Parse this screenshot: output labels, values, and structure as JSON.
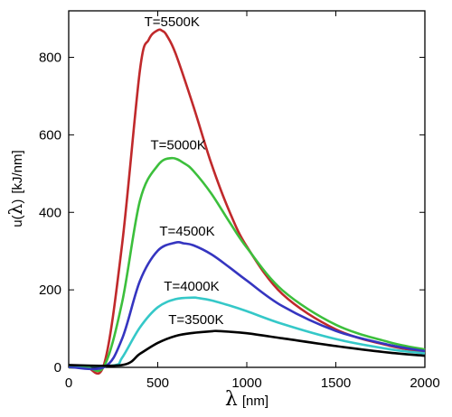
{
  "chart_data": {
    "type": "line",
    "xlabel": {
      "symbol": "λ",
      "unit": "[nm]"
    },
    "ylabel": {
      "prefix": "u(",
      "symbol": "λ",
      "suffix": ")",
      "unit": "[kJ/nm]"
    },
    "xlim": [
      0,
      2000
    ],
    "ylim": [
      0,
      920
    ],
    "xticks": [
      0,
      500,
      1000,
      1500,
      2000
    ],
    "yticks": [
      0,
      200,
      400,
      600,
      800
    ],
    "xtick_labels": [
      "0",
      "500",
      "1000",
      "1500",
      "2000"
    ],
    "ytick_labels": [
      "0",
      "200",
      "400",
      "600",
      "800"
    ],
    "grid": false,
    "legend": "none",
    "series": [
      {
        "label": "T=5500K",
        "color": "#c0292b",
        "x": [
          100,
          200,
          300,
          400,
          450,
          500,
          527,
          550,
          600,
          700,
          800,
          900,
          1000,
          1200,
          1500,
          1800,
          2000
        ],
        "y": [
          0,
          10,
          318,
          767,
          846,
          870,
          868,
          857,
          810,
          674,
          527,
          405,
          312,
          189,
          98,
          56,
          40
        ]
      },
      {
        "label": "T=5000K",
        "color": "#3cbf3c",
        "x": [
          100,
          200,
          300,
          400,
          500,
          580,
          650,
          700,
          800,
          900,
          1000,
          1200,
          1500,
          1800,
          2000
        ],
        "y": [
          0,
          4,
          168,
          430,
          521,
          540,
          526,
          507,
          449,
          377,
          309,
          199,
          110,
          65,
          46
        ]
      },
      {
        "label": "T=4500K",
        "color": "#3535c0",
        "x": [
          200,
          300,
          400,
          500,
          600,
          645,
          700,
          800,
          900,
          1000,
          1200,
          1500,
          1800,
          2000
        ],
        "y": [
          1,
          74,
          223,
          301,
          322,
          320,
          315,
          292,
          259,
          224,
          158,
          94,
          58,
          42
        ]
      },
      {
        "label": "T=4000K",
        "color": "#35c8c8",
        "x": [
          250,
          300,
          400,
          500,
          600,
          700,
          725,
          800,
          900,
          1000,
          1200,
          1500,
          1800,
          2000
        ],
        "y": [
          5,
          25,
          103,
          155,
          176,
          180,
          179,
          173,
          160,
          145,
          112,
          73,
          47,
          36
        ]
      },
      {
        "label": "T=3500K",
        "color": "#000000",
        "x": [
          300,
          400,
          500,
          600,
          700,
          800,
          828,
          900,
          1000,
          1200,
          1500,
          1800,
          2000
        ],
        "y": [
          6,
          35,
          63,
          81,
          89,
          93,
          94,
          92,
          88,
          75,
          55,
          38,
          30
        ]
      }
    ],
    "annotations": [
      {
        "text": "T=5500K",
        "x": 580,
        "y": 880
      },
      {
        "text": "T=5000K",
        "x": 615,
        "y": 563
      },
      {
        "text": "T=4500K",
        "x": 665,
        "y": 340
      },
      {
        "text": "T=4000K",
        "x": 690,
        "y": 198
      },
      {
        "text": "T=3500K",
        "x": 715,
        "y": 112
      }
    ]
  }
}
